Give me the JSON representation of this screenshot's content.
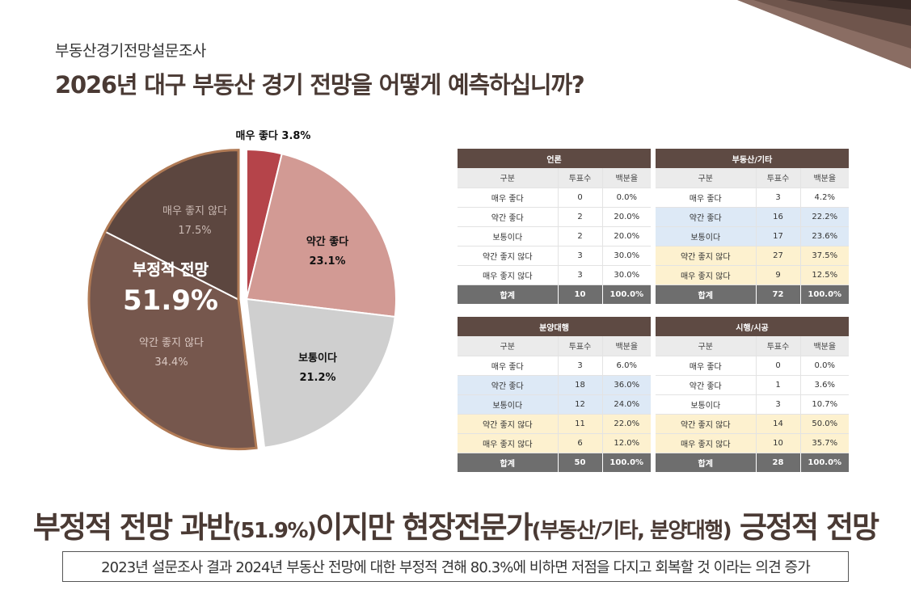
{
  "header": {
    "kicker": "부동산경기전망설문조사",
    "title": "2026년 대구 부동산 경기 전망을 어떻게 예측하십니까?"
  },
  "chart_data": {
    "type": "pie",
    "title": "",
    "slices": [
      {
        "label": "매우 좋다",
        "value": 3.8,
        "display": "3.8%",
        "color": "#b5444a"
      },
      {
        "label": "약간 좋다",
        "value": 23.1,
        "display": "23.1%",
        "color": "#d29a94"
      },
      {
        "label": "보통이다",
        "value": 21.2,
        "display": "21.2%",
        "color": "#cfcfcf"
      },
      {
        "label": "약간 좋지 않다",
        "value": 34.4,
        "display": "34.4%",
        "color": "#76574d"
      },
      {
        "label": "매우 좋지 않다",
        "value": 17.5,
        "display": "17.5%",
        "color": "#5c463f"
      }
    ],
    "callout": {
      "label": "부정적 전망",
      "value": "51.9%"
    }
  },
  "tables": [
    {
      "title": "언론",
      "headers": [
        "구분",
        "투표수",
        "백분율"
      ],
      "rows": [
        {
          "label": "매우 좋다",
          "count": "0",
          "pct": "0.0%",
          "hl": ""
        },
        {
          "label": "약간 좋다",
          "count": "2",
          "pct": "20.0%",
          "hl": ""
        },
        {
          "label": "보통이다",
          "count": "2",
          "pct": "20.0%",
          "hl": ""
        },
        {
          "label": "약간 좋지 않다",
          "count": "3",
          "pct": "30.0%",
          "hl": ""
        },
        {
          "label": "매우 좋지 않다",
          "count": "3",
          "pct": "30.0%",
          "hl": ""
        }
      ],
      "total": {
        "label": "합계",
        "count": "10",
        "pct": "100.0%"
      }
    },
    {
      "title": "부동산/기타",
      "headers": [
        "구분",
        "투표수",
        "백분율"
      ],
      "rows": [
        {
          "label": "매우 좋다",
          "count": "3",
          "pct": "4.2%",
          "hl": ""
        },
        {
          "label": "약간 좋다",
          "count": "16",
          "pct": "22.2%",
          "hl": "blue"
        },
        {
          "label": "보통이다",
          "count": "17",
          "pct": "23.6%",
          "hl": "blue"
        },
        {
          "label": "약간 좋지 않다",
          "count": "27",
          "pct": "37.5%",
          "hl": "yellow"
        },
        {
          "label": "매우 좋지 않다",
          "count": "9",
          "pct": "12.5%",
          "hl": "yellow"
        }
      ],
      "total": {
        "label": "합계",
        "count": "72",
        "pct": "100.0%"
      }
    },
    {
      "title": "분양대행",
      "headers": [
        "구분",
        "투표수",
        "백분율"
      ],
      "rows": [
        {
          "label": "매우 좋다",
          "count": "3",
          "pct": "6.0%",
          "hl": ""
        },
        {
          "label": "약간 좋다",
          "count": "18",
          "pct": "36.0%",
          "hl": "blue"
        },
        {
          "label": "보통이다",
          "count": "12",
          "pct": "24.0%",
          "hl": "blue"
        },
        {
          "label": "약간 좋지 않다",
          "count": "11",
          "pct": "22.0%",
          "hl": "yellow"
        },
        {
          "label": "매우 좋지 않다",
          "count": "6",
          "pct": "12.0%",
          "hl": "yellow"
        }
      ],
      "total": {
        "label": "합계",
        "count": "50",
        "pct": "100.0%"
      }
    },
    {
      "title": "시행/시공",
      "headers": [
        "구분",
        "투표수",
        "백분율"
      ],
      "rows": [
        {
          "label": "매우 좋다",
          "count": "0",
          "pct": "0.0%",
          "hl": ""
        },
        {
          "label": "약간 좋다",
          "count": "1",
          "pct": "3.6%",
          "hl": ""
        },
        {
          "label": "보통이다",
          "count": "3",
          "pct": "10.7%",
          "hl": ""
        },
        {
          "label": "약간 좋지 않다",
          "count": "14",
          "pct": "50.0%",
          "hl": "yellow"
        },
        {
          "label": "매우 좋지 않다",
          "count": "10",
          "pct": "35.7%",
          "hl": "yellow"
        }
      ],
      "total": {
        "label": "합계",
        "count": "28",
        "pct": "100.0%"
      }
    }
  ],
  "headline": {
    "part1": "부정적 전망 과반",
    "part2": "(51.9%)",
    "part3": "이지만 현장전문가",
    "part4": "(부동산/기타, 분양대행)",
    "part5": " 긍정적 전망"
  },
  "summary": "2023년 설문조사 결과 2024년 부동산 전망에 대한 부정적 견해 80.3%에 비하면 저점을 다지고 회복할 것 이라는 의견 증가"
}
